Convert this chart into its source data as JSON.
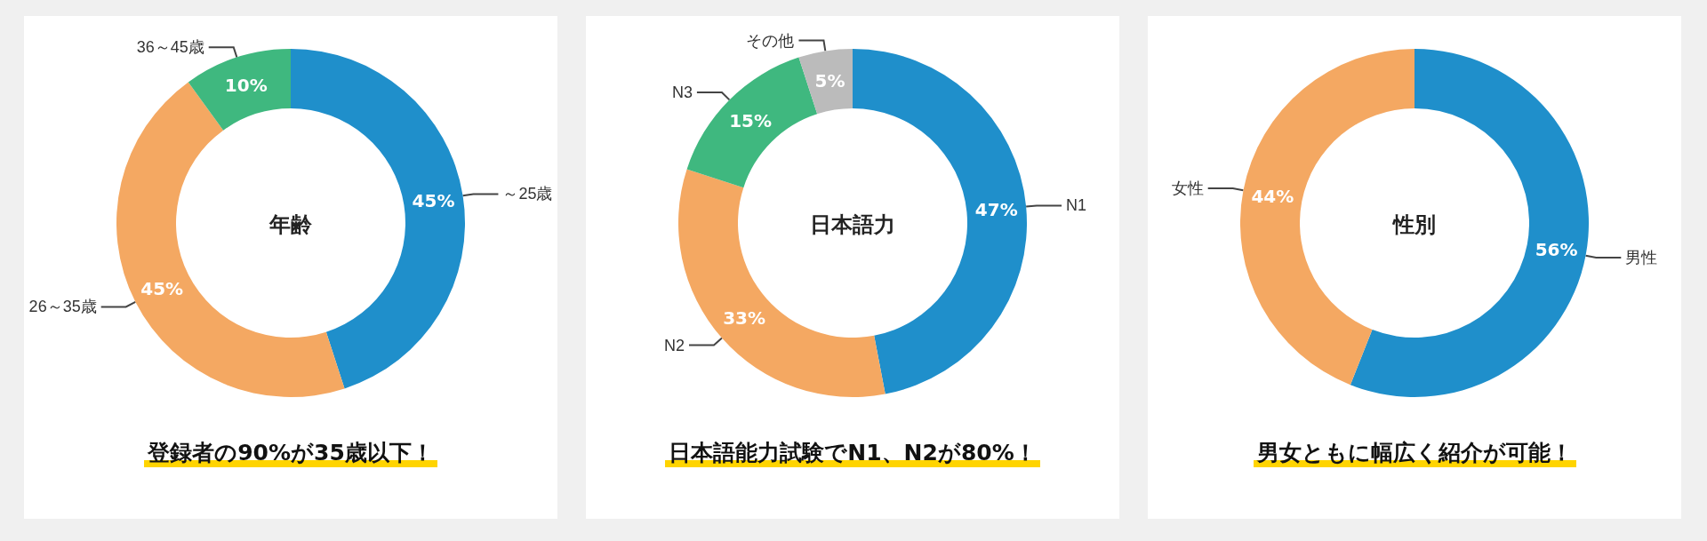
{
  "chart_data": [
    {
      "type": "donut",
      "title": "年齢",
      "subtitle": "登録者の90%が35歳以下！",
      "categories": [
        "～25歳",
        "26～35歳",
        "36～45歳"
      ],
      "values": [
        45,
        45,
        10
      ],
      "value_labels": [
        "45%",
        "45%",
        "10%"
      ],
      "colors": [
        "#1f8fcb",
        "#f4a862",
        "#3fb87f"
      ],
      "legend": false
    },
    {
      "type": "donut",
      "title": "日本語力",
      "subtitle": "日本語能力試験でN1、N2が80%！",
      "categories": [
        "N1",
        "N2",
        "N3",
        "その他"
      ],
      "values": [
        47,
        33,
        15,
        5
      ],
      "value_labels": [
        "47%",
        "33%",
        "15%",
        "5%"
      ],
      "colors": [
        "#1f8fcb",
        "#f4a862",
        "#3fb87f",
        "#bbbbbb"
      ],
      "legend": false
    },
    {
      "type": "donut",
      "title": "性別",
      "subtitle": "男女ともに幅広く紹介が可能！",
      "categories": [
        "男性",
        "女性"
      ],
      "values": [
        56,
        44
      ],
      "value_labels": [
        "56%",
        "44%"
      ],
      "colors": [
        "#1f8fcb",
        "#f4a862"
      ],
      "legend": false
    }
  ]
}
